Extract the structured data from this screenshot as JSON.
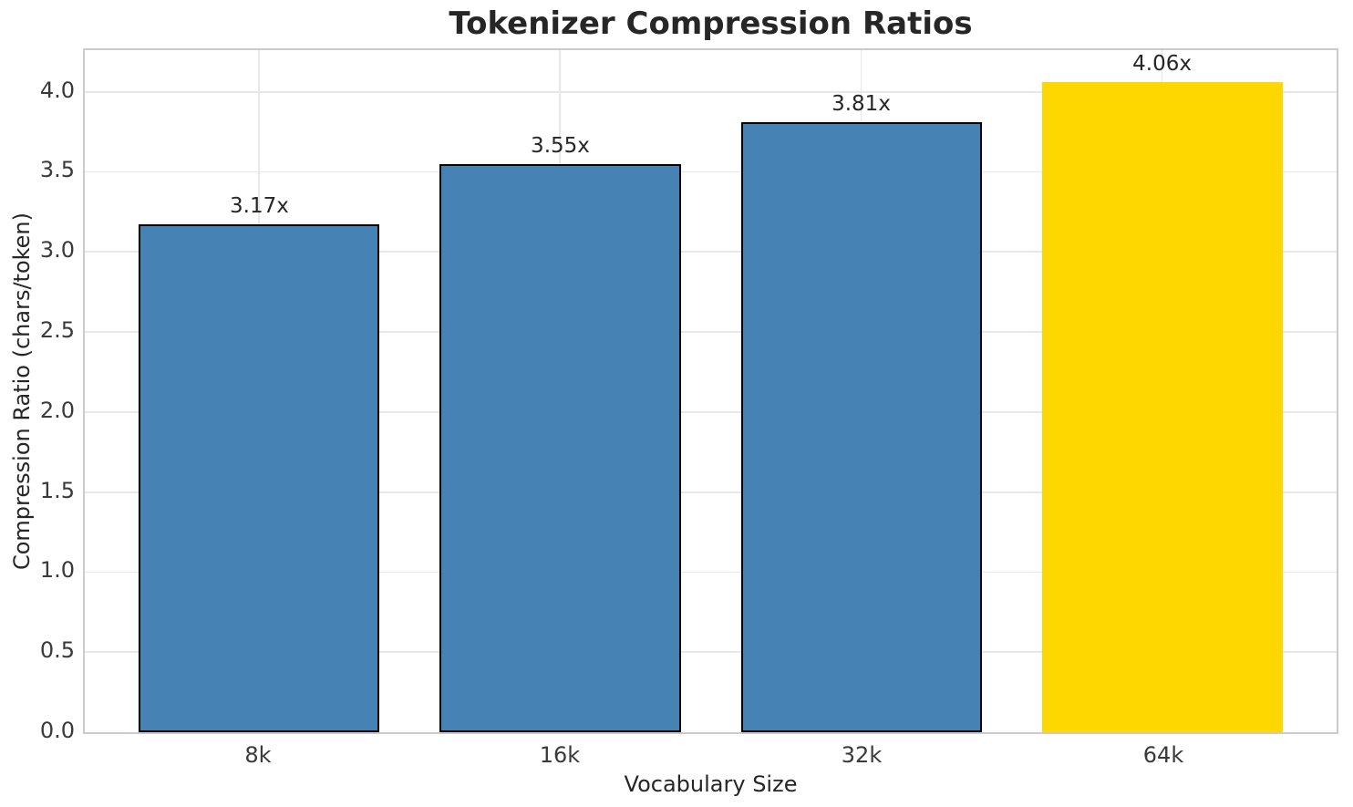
{
  "figure": {
    "background": "#ffffff"
  },
  "chart_data": {
    "type": "bar",
    "title": "Tokenizer Compression Ratios",
    "xlabel": "Vocabulary Size",
    "ylabel": "Compression Ratio (chars/token)",
    "categories": [
      "8k",
      "16k",
      "32k",
      "64k"
    ],
    "values": [
      3.17,
      3.55,
      3.81,
      4.06
    ],
    "bar_labels": [
      "3.17x",
      "3.55x",
      "3.81x",
      "4.06x"
    ],
    "bar_colors": [
      "#4682b4",
      "#4682b4",
      "#4682b4",
      "#ffd700"
    ],
    "bar_edge_colors": [
      "#000000",
      "#000000",
      "#000000",
      null
    ],
    "bar_edge_width": 2.5,
    "highlight_index": 3,
    "bar_width": 0.8,
    "xlim": [
      -0.58,
      3.58
    ],
    "ylim": [
      0,
      4.26
    ],
    "yticks": [
      0.0,
      0.5,
      1.0,
      1.5,
      2.0,
      2.5,
      3.0,
      3.5,
      4.0
    ],
    "ytick_labels": [
      "0.0",
      "0.5",
      "1.0",
      "1.5",
      "2.0",
      "2.5",
      "3.0",
      "3.5",
      "4.0"
    ],
    "grid": true,
    "grid_color": "#e7e7e7",
    "spine_color": "#cbcbcb",
    "legend_position": "none"
  }
}
